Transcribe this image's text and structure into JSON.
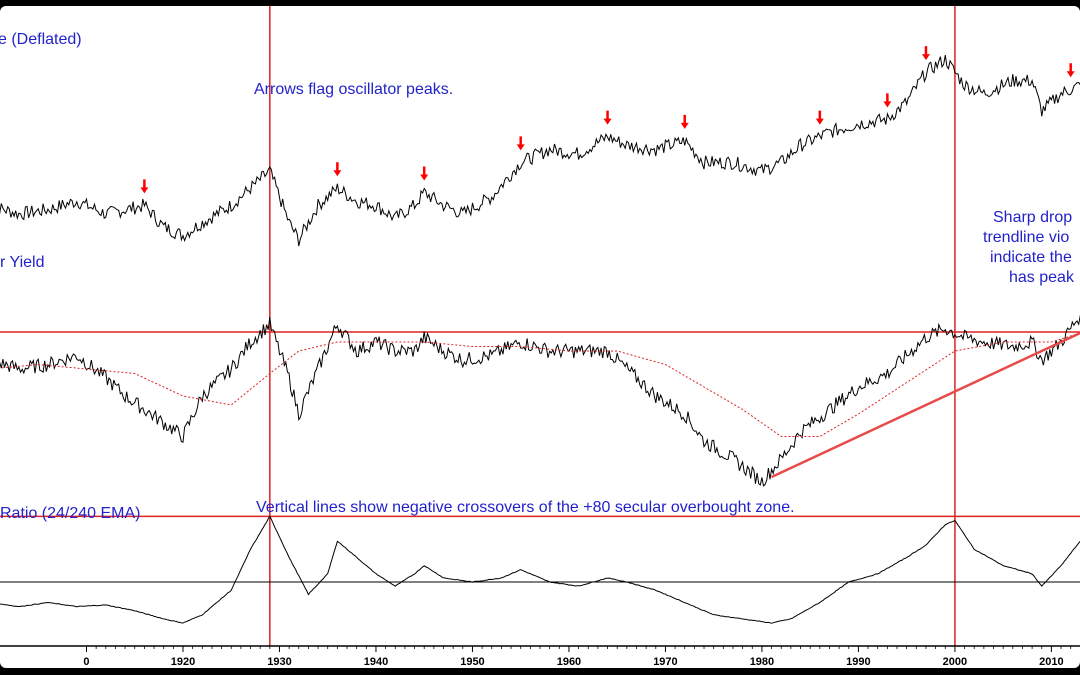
{
  "chart_data": [
    {
      "type": "line",
      "title": "e (Deflated)",
      "annotation": "Arrows flag oscillator peaks.",
      "peak_arrow_years": [
        1916,
        1936,
        1945,
        1955,
        1964,
        1972,
        1986,
        1993,
        1997,
        2012
      ],
      "series": [
        {
          "x": [
            1900,
            1903,
            1906,
            1909,
            1912,
            1914,
            1916,
            1918,
            1920,
            1922,
            1925,
            1927,
            1929,
            1931,
            1932,
            1934,
            1936,
            1938,
            1940,
            1942,
            1944,
            1945,
            1947,
            1949,
            1952,
            1955,
            1958,
            1961,
            1964,
            1966,
            1969,
            1972,
            1974,
            1977,
            1980,
            1982,
            1984,
            1987,
            1990,
            1993,
            1995,
            1997,
            1999,
            2001,
            2003,
            2006,
            2008,
            2009,
            2011,
            2013
          ],
          "y": [
            42,
            40,
            41,
            43,
            40,
            41,
            42,
            37,
            35,
            38,
            42,
            46,
            50,
            38,
            34,
            42,
            46,
            43,
            42,
            39,
            42,
            45,
            42,
            40,
            44,
            52,
            55,
            54,
            58,
            56,
            55,
            57,
            52,
            52,
            50,
            52,
            56,
            59,
            61,
            62,
            66,
            73,
            76,
            70,
            68,
            71,
            71,
            64,
            68,
            70
          ]
        }
      ]
    },
    {
      "type": "line",
      "title": "r Yield",
      "annotation": "Sharp drop trendline vio indicate the has peak",
      "series": [
        {
          "name": "",
          "x": [
            1900,
            1903,
            1906,
            1909,
            1912,
            1914,
            1916,
            1918,
            1920,
            1922,
            1925,
            1927,
            1929,
            1931,
            1932,
            1934,
            1936,
            1938,
            1940,
            1942,
            1944,
            1945,
            1947,
            1949,
            1952,
            1955,
            1958,
            1961,
            1964,
            1966,
            1969,
            1972,
            1974,
            1977,
            1980,
            1982,
            1984,
            1987,
            1990,
            1993,
            1995,
            1997,
            1999,
            2001,
            2003,
            2006,
            2008,
            2009,
            2011,
            2013
          ],
          "y": [
            48,
            46,
            47,
            49,
            44,
            40,
            37,
            34,
            31,
            40,
            46,
            52,
            56,
            44,
            36,
            46,
            56,
            50,
            52,
            50,
            50,
            53,
            50,
            48,
            49,
            52,
            50,
            50,
            50,
            46,
            40,
            36,
            30,
            26,
            21,
            26,
            32,
            37,
            42,
            45,
            49,
            53,
            55,
            53,
            52,
            51,
            52,
            48,
            52,
            58
          ]
        },
        {
          "name": "",
          "style": "dotted",
          "x": [
            1900,
            1905,
            1910,
            1915,
            1920,
            1925,
            1929,
            1932,
            1936,
            1940,
            1945,
            1950,
            1955,
            1960,
            1965,
            1970,
            1974,
            1978,
            1982,
            1986,
            1990,
            1995,
            2000,
            2005,
            2010,
            2013
          ],
          "y": [
            46,
            47,
            46,
            45,
            40,
            38,
            45,
            50,
            52,
            52,
            52,
            51,
            51,
            50,
            50,
            47,
            42,
            37,
            31,
            31,
            36,
            43,
            50,
            52,
            52,
            54
          ]
        }
      ],
      "trendline": {
        "x": [
          1981,
          2013
        ],
        "y": [
          22,
          54
        ]
      }
    },
    {
      "type": "line",
      "title": "Ratio (24/240 EMA)",
      "annotation": "Vertical lines show negative crossovers of the +80 secular overbought zone.",
      "reference_value": 0,
      "overbought_value": 80,
      "crossover_years": [
        1929,
        2000
      ],
      "series": [
        {
          "x": [
            1900,
            1903,
            1906,
            1909,
            1912,
            1915,
            1918,
            1920,
            1922,
            1925,
            1927,
            1929,
            1931,
            1933,
            1935,
            1936,
            1938,
            1940,
            1942,
            1944,
            1945,
            1947,
            1950,
            1953,
            1955,
            1958,
            1961,
            1964,
            1966,
            1969,
            1972,
            1975,
            1978,
            1981,
            1983,
            1986,
            1989,
            1992,
            1995,
            1997,
            1999,
            2000,
            2002,
            2005,
            2008,
            2009,
            2011,
            2013
          ],
          "y": [
            -25,
            -30,
            -25,
            -30,
            -28,
            -35,
            -45,
            -50,
            -40,
            -10,
            40,
            80,
            30,
            -15,
            10,
            50,
            30,
            10,
            -5,
            10,
            20,
            5,
            0,
            5,
            15,
            0,
            -5,
            5,
            0,
            -10,
            -25,
            -40,
            -45,
            -50,
            -45,
            -25,
            0,
            10,
            30,
            45,
            70,
            75,
            40,
            20,
            10,
            -5,
            20,
            50
          ]
        }
      ]
    }
  ],
  "x_axis": {
    "ticks": [
      "0",
      "1920",
      "1930",
      "1940",
      "1950",
      "1960",
      "1970",
      "1980",
      "1990",
      "2000",
      "2010"
    ]
  },
  "colors": {
    "price": "#000000",
    "guide": "#dd2222",
    "arrow": "#ff0000",
    "text": "#2222cc"
  }
}
